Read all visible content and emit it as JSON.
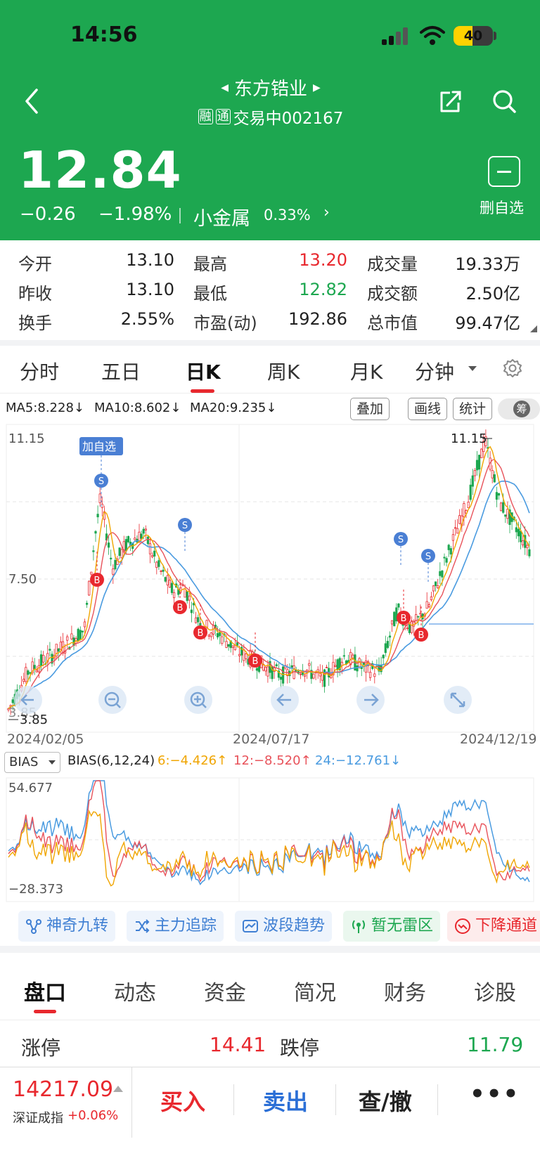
{
  "status_bar": {
    "time": "14:56",
    "battery": "40"
  },
  "header": {
    "stock_name": "东方锆业",
    "tag1": "融",
    "tag2": "通",
    "status_code": "交易中002167",
    "price": "12.84",
    "change": "−0.26",
    "change_pct": "−1.98%",
    "sector": "小金属",
    "sector_pct": "0.33%",
    "fav_label": "删自选",
    "accent_color": "#1da750"
  },
  "quote": {
    "open_label": "今开",
    "open": "13.10",
    "high_label": "最高",
    "high": "13.20",
    "volume_label": "成交量",
    "volume": "19.33万",
    "prev_close_label": "昨收",
    "prev_close": "13.10",
    "low_label": "最低",
    "low": "12.82",
    "amount_label": "成交额",
    "amount": "2.50亿",
    "turnover_label": "换手",
    "turnover": "2.55%",
    "pe_label": "市盈(动)",
    "pe": "192.86",
    "mktcap_label": "总市值",
    "mktcap": "99.47亿"
  },
  "period_tabs": [
    "分时",
    "五日",
    "日K",
    "周K",
    "月K",
    "分钟"
  ],
  "ma": {
    "ma5": "MA5:8.228↓",
    "ma10": "MA10:8.602↓",
    "ma20": "MA20:9.235↓",
    "ma5_color": "#f0a500",
    "ma10_color": "#e8525a",
    "ma20_color": "#4a9be0"
  },
  "chart_tools": {
    "overlay": "叠加",
    "draw": "画线",
    "stats": "统计",
    "toggle": "筹"
  },
  "chart_data": {
    "type": "candlestick",
    "y_top_label": "11.15",
    "y_mid_label": "7.50",
    "y_low_label": "3.85",
    "max_marker": "11.15",
    "min_marker": "3.85",
    "x_labels": [
      "2024/02/05",
      "2024/07/17",
      "2024/12/19"
    ],
    "add_fav_badge": "加自选",
    "signal_s": "S",
    "signal_b": "B",
    "up_color": "#e8282e",
    "down_color": "#1da750"
  },
  "bias": {
    "selector": "BIAS",
    "params": "BIAS(6,12,24)",
    "b6": "6:−4.426↑",
    "b12": "12:−8.520↑",
    "b24": "24:−12.761↓",
    "top_label": "54.677",
    "bottom_label": "−28.373"
  },
  "chips": [
    "神奇九转",
    "主力追踪",
    "波段趋势",
    "暂无雷区",
    "下降通道"
  ],
  "bottom_tabs": [
    "盘口",
    "动态",
    "资金",
    "简况",
    "财务",
    "诊股"
  ],
  "limits": {
    "up_label": "涨停",
    "up": "14.41",
    "down_label": "跌停",
    "down": "11.79"
  },
  "trade_bar": {
    "index_value": "14217.09",
    "index_name": "深证成指",
    "index_pct": "+0.06%",
    "buy": "买入",
    "sell": "卖出",
    "query": "查/撤",
    "more": "•••"
  }
}
